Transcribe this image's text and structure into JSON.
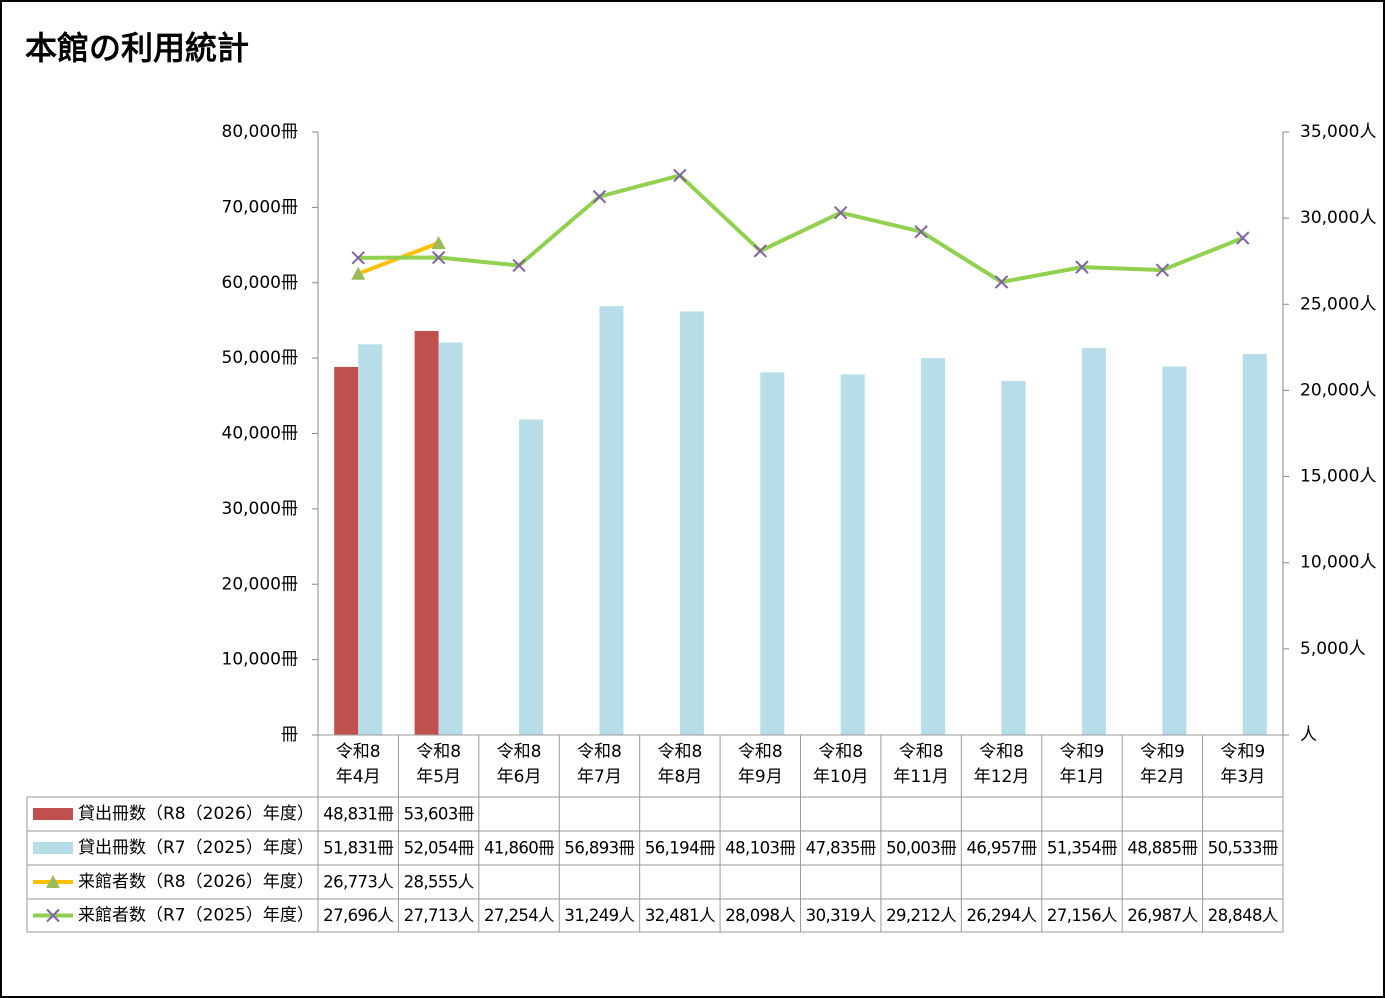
{
  "chart_data": {
    "type": "bar",
    "title": "本館の利用統計",
    "categories": [
      [
        "令和8",
        "年4月"
      ],
      [
        "令和8",
        "年5月"
      ],
      [
        "令和8",
        "年6月"
      ],
      [
        "令和8",
        "年7月"
      ],
      [
        "令和8",
        "年8月"
      ],
      [
        "令和8",
        "年9月"
      ],
      [
        "令和8",
        "年10月"
      ],
      [
        "令和8",
        "年11月"
      ],
      [
        "令和8",
        "年12月"
      ],
      [
        "令和9",
        "年1月"
      ],
      [
        "令和9",
        "年2月"
      ],
      [
        "令和9",
        "年3月"
      ]
    ],
    "ylim": [
      0,
      80000
    ],
    "yticks": [
      {
        "value": 0,
        "label": "冊"
      },
      {
        "value": 10000,
        "label": "10,000冊"
      },
      {
        "value": 20000,
        "label": "20,000冊"
      },
      {
        "value": 30000,
        "label": "30,000冊"
      },
      {
        "value": 40000,
        "label": "40,000冊"
      },
      {
        "value": 50000,
        "label": "50,000冊"
      },
      {
        "value": 60000,
        "label": "60,000冊"
      },
      {
        "value": 70000,
        "label": "70,000冊"
      },
      {
        "value": 80000,
        "label": "80,000冊"
      }
    ],
    "y2lim": [
      0,
      35000
    ],
    "y2ticks": [
      {
        "value": 0,
        "label": "人"
      },
      {
        "value": 5000,
        "label": "5,000人"
      },
      {
        "value": 10000,
        "label": "10,000人"
      },
      {
        "value": 15000,
        "label": "15,000人"
      },
      {
        "value": 20000,
        "label": "20,000人"
      },
      {
        "value": 25000,
        "label": "25,000人"
      },
      {
        "value": 30000,
        "label": "30,000人"
      },
      {
        "value": 35000,
        "label": "35,000人"
      }
    ],
    "series": [
      {
        "name": "貸出冊数（R8（2026）年度）",
        "type": "bar",
        "color": "#c0504d",
        "values": [
          48831,
          53603,
          null,
          null,
          null,
          null,
          null,
          null,
          null,
          null,
          null,
          null
        ],
        "value_labels": [
          "48,831冊",
          "53,603冊",
          null,
          null,
          null,
          null,
          null,
          null,
          null,
          null,
          null,
          null
        ]
      },
      {
        "name": "貸出冊数（R7（2025）年度）",
        "type": "bar",
        "color": "#b7dde8",
        "values": [
          51831,
          52054,
          41860,
          56893,
          56194,
          48103,
          47835,
          50003,
          46957,
          51354,
          48885,
          50533
        ],
        "value_labels": [
          "51,831冊",
          "52,054冊",
          "41,860冊",
          "56,893冊",
          "56,194冊",
          "48,103冊",
          "47,835冊",
          "50,003冊",
          "46,957冊",
          "51,354冊",
          "48,885冊",
          "50,533冊"
        ]
      },
      {
        "name": "来館者数（R8（2026）年度）",
        "type": "line",
        "axis": "y2",
        "color": "#ffc000",
        "marker": "triangle",
        "marker_color": "#9bbb59",
        "values": [
          26773,
          28555,
          null,
          null,
          null,
          null,
          null,
          null,
          null,
          null,
          null,
          null
        ],
        "value_labels": [
          "26,773人",
          "28,555人",
          null,
          null,
          null,
          null,
          null,
          null,
          null,
          null,
          null,
          null
        ]
      },
      {
        "name": "来館者数（R7（2025）年度）",
        "type": "line",
        "axis": "y2",
        "color": "#92d050",
        "marker": "x",
        "marker_color": "#8064a2",
        "values": [
          27696,
          27713,
          27254,
          31249,
          32481,
          28098,
          30319,
          29212,
          26294,
          27156,
          26987,
          28848
        ],
        "value_labels": [
          "27,696人",
          "27,713人",
          "27,254人",
          "31,249人",
          "32,481人",
          "28,098人",
          "30,319人",
          "29,212人",
          "26,294人",
          "27,156人",
          "26,987人",
          "28,848人"
        ]
      }
    ]
  }
}
